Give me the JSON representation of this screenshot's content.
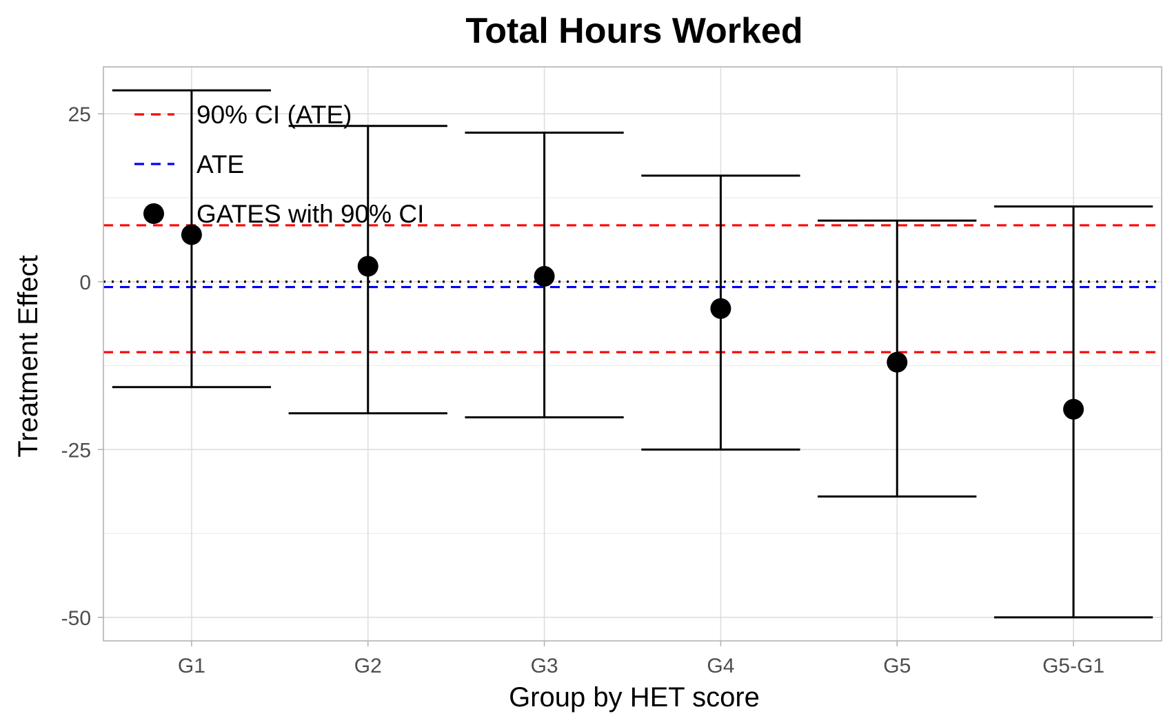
{
  "chart_data": {
    "type": "scatter",
    "title": "Total Hours Worked",
    "xlabel": "Group by HET score",
    "ylabel": "Treatment Effect",
    "categories": [
      "G1",
      "G2",
      "G3",
      "G4",
      "G5",
      "G5-G1"
    ],
    "series": [
      {
        "name": "GATES with 90% CI",
        "values": [
          7,
          2.3,
          0.8,
          -4,
          -12,
          -19
        ],
        "ci_lower": [
          -15.7,
          -19.6,
          -20.2,
          -25,
          -32,
          -50
        ],
        "ci_upper": [
          28.5,
          23.2,
          22.2,
          15.8,
          9.1,
          11.2
        ],
        "color": "#000000"
      }
    ],
    "reference_lines": [
      {
        "name": "ATE",
        "value": -0.8,
        "color": "#0000ff",
        "style": "dashed"
      },
      {
        "name": "90% CI (ATE)",
        "values": [
          8.4,
          -10.5
        ],
        "color": "#ff0000",
        "style": "dashed"
      },
      {
        "name": "",
        "value": 0,
        "color": "#000000",
        "style": "dotted"
      }
    ],
    "yticks": [
      25,
      0,
      -25,
      -50
    ],
    "yticks_labels": [
      "25",
      "0",
      "-25",
      "-50"
    ],
    "ylim": [
      -53.5,
      32
    ],
    "grid": true,
    "legend": {
      "position": "top-left",
      "entries": [
        "90% CI (ATE)",
        "ATE",
        "GATES with 90% CI"
      ]
    }
  }
}
